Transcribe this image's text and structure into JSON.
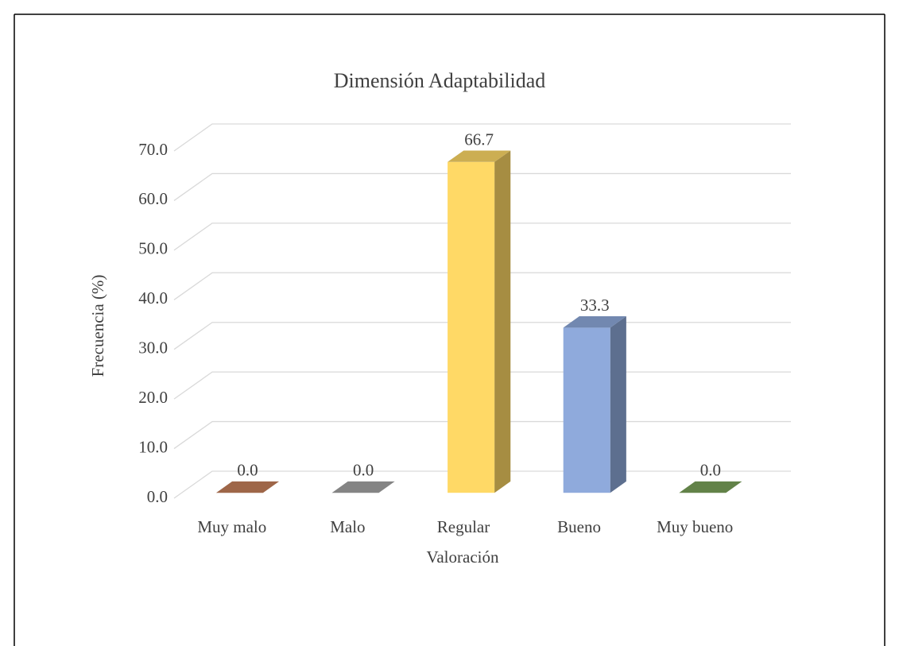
{
  "chart_data": {
    "type": "bar3d",
    "title": "Dimensión Adaptabilidad",
    "xlabel": "Valoración",
    "ylabel": "Frecuencia (%)",
    "categories": [
      "Muy malo",
      "Malo",
      "Regular",
      "Bueno",
      "Muy bueno"
    ],
    "values": [
      0,
      0,
      66.7,
      33.3,
      0
    ],
    "value_labels": [
      "0.0",
      "0.0",
      "66.7",
      "33.3",
      "0.0"
    ],
    "colors": [
      "#c5805a",
      "#a5a5a5",
      "#ffd966",
      "#8faadc",
      "#7aa35a"
    ],
    "ylim": [
      0,
      70
    ],
    "yticks": [
      {
        "value": 0,
        "label": "0.0"
      },
      {
        "value": 10,
        "label": "10.0"
      },
      {
        "value": 20,
        "label": "20.0"
      },
      {
        "value": 30,
        "label": "30.0"
      },
      {
        "value": 40,
        "label": "40.0"
      },
      {
        "value": 50,
        "label": "50.0"
      },
      {
        "value": 60,
        "label": "60.0"
      },
      {
        "value": 70,
        "label": "70.0"
      }
    ],
    "grid": true
  }
}
